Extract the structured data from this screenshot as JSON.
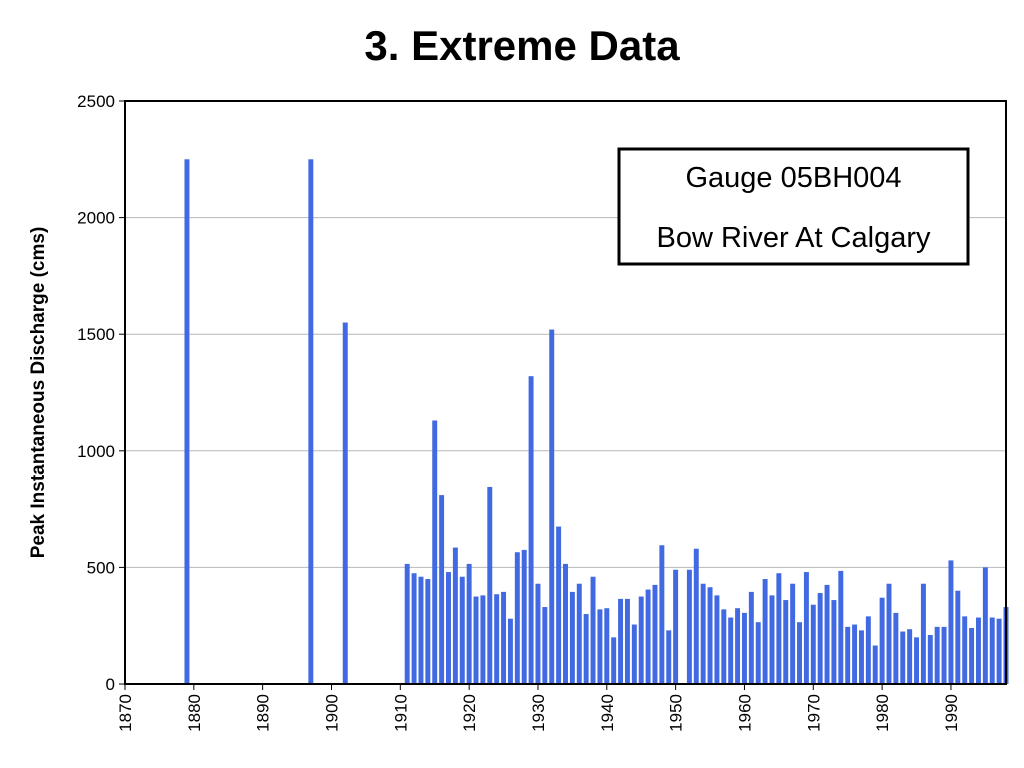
{
  "title": "3. Extreme Data",
  "chart_data": {
    "type": "bar",
    "title": "3. Extreme Data",
    "xlabel": "",
    "ylabel": "Peak Instantaneous Discharge (cms)",
    "xlim": [
      1870,
      1998
    ],
    "ylim": [
      0,
      2500
    ],
    "xticks": [
      "1870",
      "1880",
      "1890",
      "1900",
      "1910",
      "1920",
      "1930",
      "1940",
      "1950",
      "1960",
      "1970",
      "1980",
      "1990"
    ],
    "yticks": [
      "0",
      "500",
      "1000",
      "1500",
      "2000",
      "2500"
    ],
    "grid": "horizontal",
    "bar_color": "#4169e1",
    "annotation": {
      "line1": "Gauge 05BH004",
      "line2": "Bow River At Calgary",
      "placement": "top-right"
    },
    "x": [
      1879,
      1897,
      1902,
      1911,
      1912,
      1913,
      1914,
      1915,
      1916,
      1917,
      1918,
      1919,
      1920,
      1921,
      1922,
      1923,
      1924,
      1925,
      1926,
      1927,
      1928,
      1929,
      1930,
      1931,
      1932,
      1933,
      1934,
      1935,
      1936,
      1937,
      1938,
      1939,
      1940,
      1941,
      1942,
      1943,
      1944,
      1945,
      1946,
      1947,
      1948,
      1949,
      1950,
      1952,
      1953,
      1954,
      1955,
      1956,
      1957,
      1958,
      1959,
      1960,
      1961,
      1962,
      1963,
      1964,
      1965,
      1966,
      1967,
      1968,
      1969,
      1970,
      1971,
      1972,
      1973,
      1974,
      1975,
      1976,
      1977,
      1978,
      1979,
      1980,
      1981,
      1982,
      1983,
      1984,
      1985,
      1986,
      1987,
      1988,
      1989,
      1990,
      1991,
      1992,
      1993,
      1994,
      1995,
      1996,
      1997,
      1998
    ],
    "values": [
      2250,
      2250,
      1550,
      515,
      475,
      460,
      450,
      1130,
      810,
      480,
      585,
      460,
      515,
      375,
      380,
      845,
      385,
      395,
      280,
      565,
      575,
      1320,
      430,
      330,
      1520,
      675,
      515,
      395,
      430,
      300,
      460,
      320,
      325,
      200,
      365,
      365,
      255,
      375,
      405,
      425,
      595,
      230,
      490,
      490,
      580,
      430,
      415,
      380,
      320,
      285,
      325,
      305,
      395,
      265,
      450,
      380,
      475,
      360,
      430,
      265,
      480,
      340,
      390,
      425,
      360,
      485,
      245,
      255,
      230,
      290,
      165,
      370,
      430,
      305,
      225,
      235,
      200,
      430,
      210,
      245,
      245,
      530,
      400,
      290,
      240,
      285,
      500,
      285,
      280,
      330
    ]
  }
}
